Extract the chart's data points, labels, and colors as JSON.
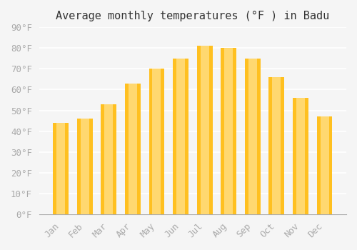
{
  "title": "Average monthly temperatures (°F ) in Badu",
  "months": [
    "Jan",
    "Feb",
    "Mar",
    "Apr",
    "May",
    "Jun",
    "Jul",
    "Aug",
    "Sep",
    "Oct",
    "Nov",
    "Dec"
  ],
  "values": [
    44,
    46,
    53,
    63,
    70,
    75,
    81,
    80,
    75,
    66,
    56,
    47
  ],
  "bar_color_top": "#FFC020",
  "bar_color_bottom": "#FFD870",
  "background_color": "#F5F5F5",
  "grid_color": "#FFFFFF",
  "tick_color": "#AAAAAA",
  "title_color": "#333333",
  "ylim": [
    0,
    90
  ],
  "yticks": [
    0,
    10,
    20,
    30,
    40,
    50,
    60,
    70,
    80,
    90
  ],
  "font_family": "monospace",
  "title_fontsize": 11,
  "tick_fontsize": 9
}
